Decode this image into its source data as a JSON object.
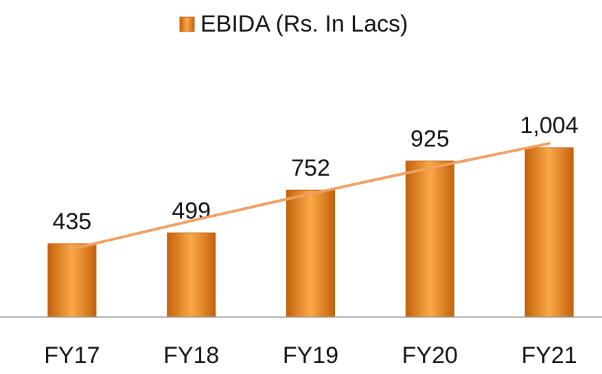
{
  "chart_data": {
    "type": "bar",
    "series": [
      {
        "name": "EBIDA (Rs. In Lacs)",
        "color": "#f08a20",
        "values": [
          435,
          499,
          752,
          925,
          1004
        ],
        "value_labels": [
          "435",
          "499",
          "752",
          "925",
          "1,004"
        ]
      }
    ],
    "categories": [
      "FY17",
      "FY18",
      "FY19",
      "FY20",
      "FY21"
    ],
    "ylim": [
      0,
      1200
    ],
    "trendline": "polynomial",
    "trendline_color": "#f0a060",
    "legend": "top"
  }
}
